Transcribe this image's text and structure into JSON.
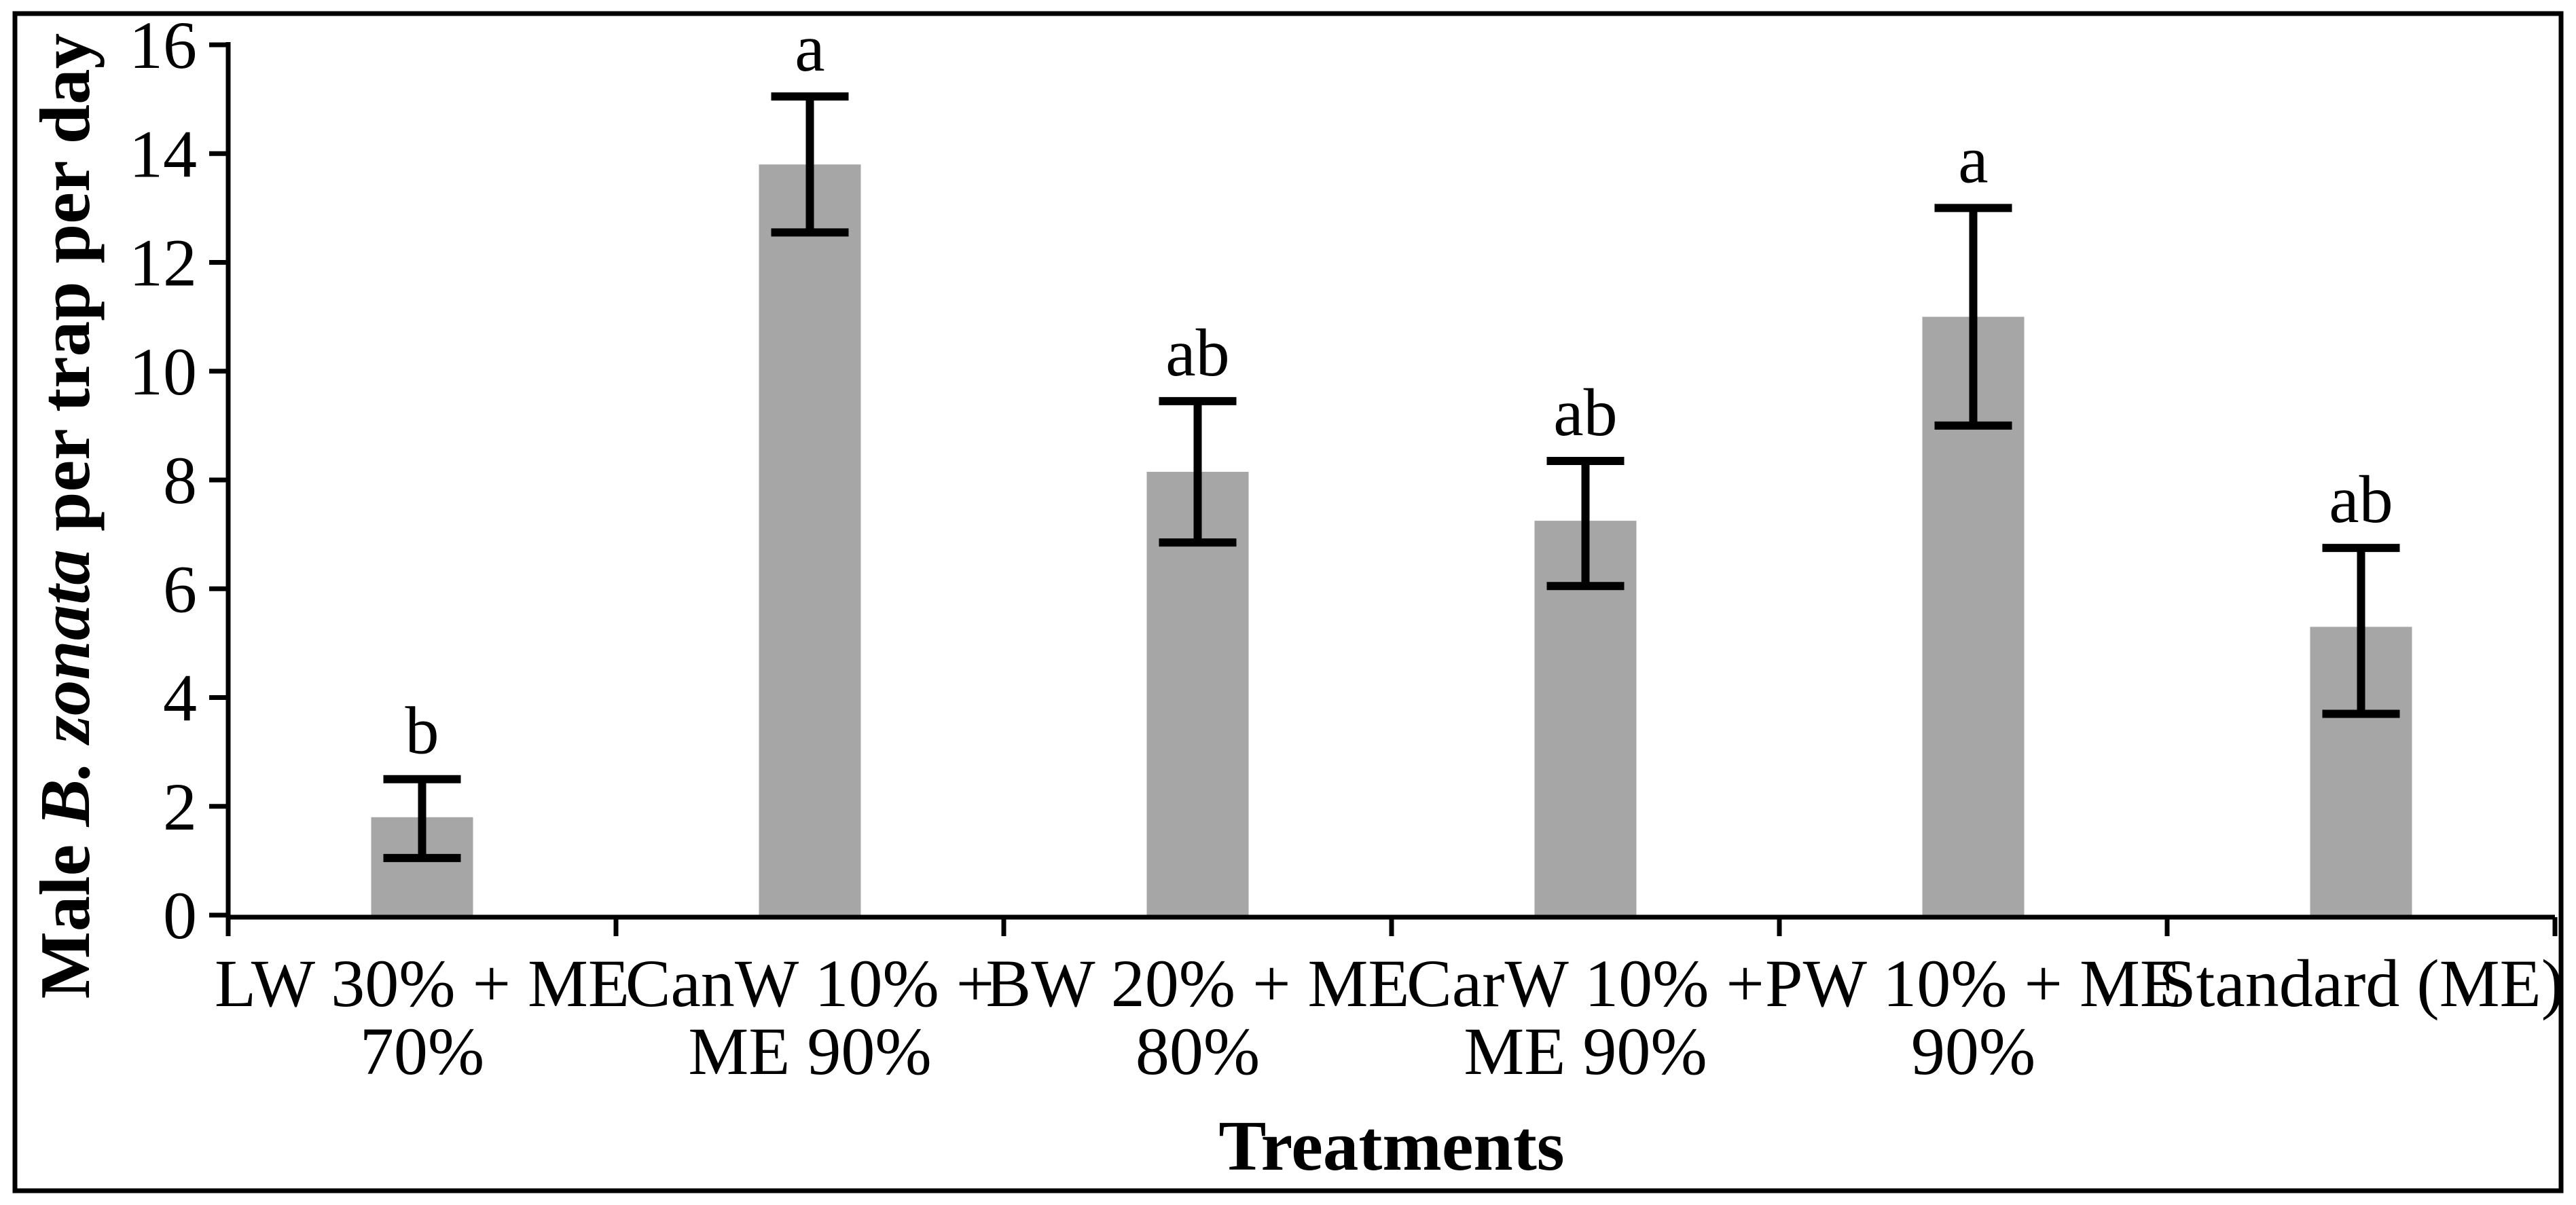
{
  "chart_data": {
    "type": "bar",
    "title": "",
    "xlabel": "Treatments",
    "ylabel": "Male B. zonata per trap per day",
    "ylabel_segments": [
      {
        "text": "Male ",
        "style": "bold"
      },
      {
        "text": "B. zonata",
        "style": "bold-italic"
      },
      {
        "text": " per trap per day",
        "style": "bold"
      }
    ],
    "ylim": [
      0,
      16
    ],
    "yticks": [
      0,
      2,
      4,
      6,
      8,
      10,
      12,
      14,
      16
    ],
    "grid": "off",
    "legend": "none",
    "bar_color": "#a6a6a6",
    "axis_color": "#000000",
    "categories": [
      {
        "label_lines": [
          "LW 30% + ME",
          "70%"
        ],
        "value": 1.8,
        "err_low": 1.05,
        "err_high": 2.5,
        "sig_letter": "b"
      },
      {
        "label_lines": [
          "CanW 10% +",
          "ME 90%"
        ],
        "value": 13.8,
        "err_low": 12.55,
        "err_high": 15.05,
        "sig_letter": "a"
      },
      {
        "label_lines": [
          "BW 20% + ME",
          "80%"
        ],
        "value": 8.15,
        "err_low": 6.85,
        "err_high": 9.45,
        "sig_letter": "ab"
      },
      {
        "label_lines": [
          "CarW 10% +",
          "ME 90%"
        ],
        "value": 7.25,
        "err_low": 6.05,
        "err_high": 8.35,
        "sig_letter": "ab"
      },
      {
        "label_lines": [
          "PW 10% + ME",
          "90%"
        ],
        "value": 11.0,
        "err_low": 9.0,
        "err_high": 13.0,
        "sig_letter": "a"
      },
      {
        "label_lines": [
          "Standard (ME)"
        ],
        "value": 5.3,
        "err_low": 3.7,
        "err_high": 6.75,
        "sig_letter": "ab"
      }
    ]
  }
}
